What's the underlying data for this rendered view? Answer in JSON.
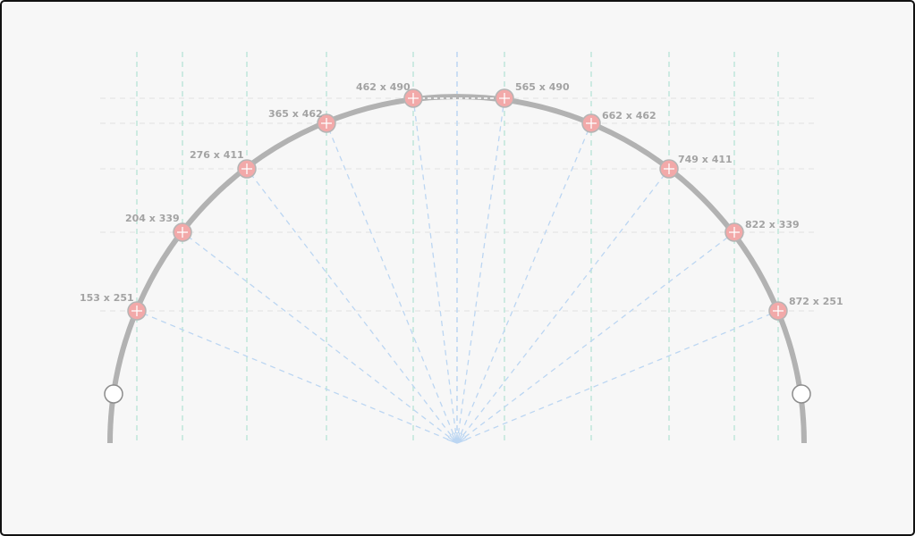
{
  "colors": {
    "background": "#f7f7f7",
    "frame_border": "#111111",
    "arc": "#b2b2b2",
    "ray": "#bcd6f2",
    "vertical_guide": "#bfe6da",
    "horizontal_guide": "#e6e6e6",
    "point_fill": "#f2a9a9",
    "point_stroke": "#b5b5b5",
    "endpoint_fill": "#ffffff",
    "label": "#a3a3a3"
  },
  "points": [
    {
      "label": "153 x 251"
    },
    {
      "label": "204 x 339"
    },
    {
      "label": "276 x 411"
    },
    {
      "label": "365 x 462"
    },
    {
      "label": "462 x 490"
    },
    {
      "label": "565 x 490"
    },
    {
      "label": "662 x 462"
    },
    {
      "label": "749 x 411"
    },
    {
      "label": "822 x 339"
    },
    {
      "label": "872 x 251"
    }
  ],
  "endpoint_handles": [
    {
      "name": "left-endpoint-handle"
    },
    {
      "name": "right-endpoint-handle"
    }
  ]
}
